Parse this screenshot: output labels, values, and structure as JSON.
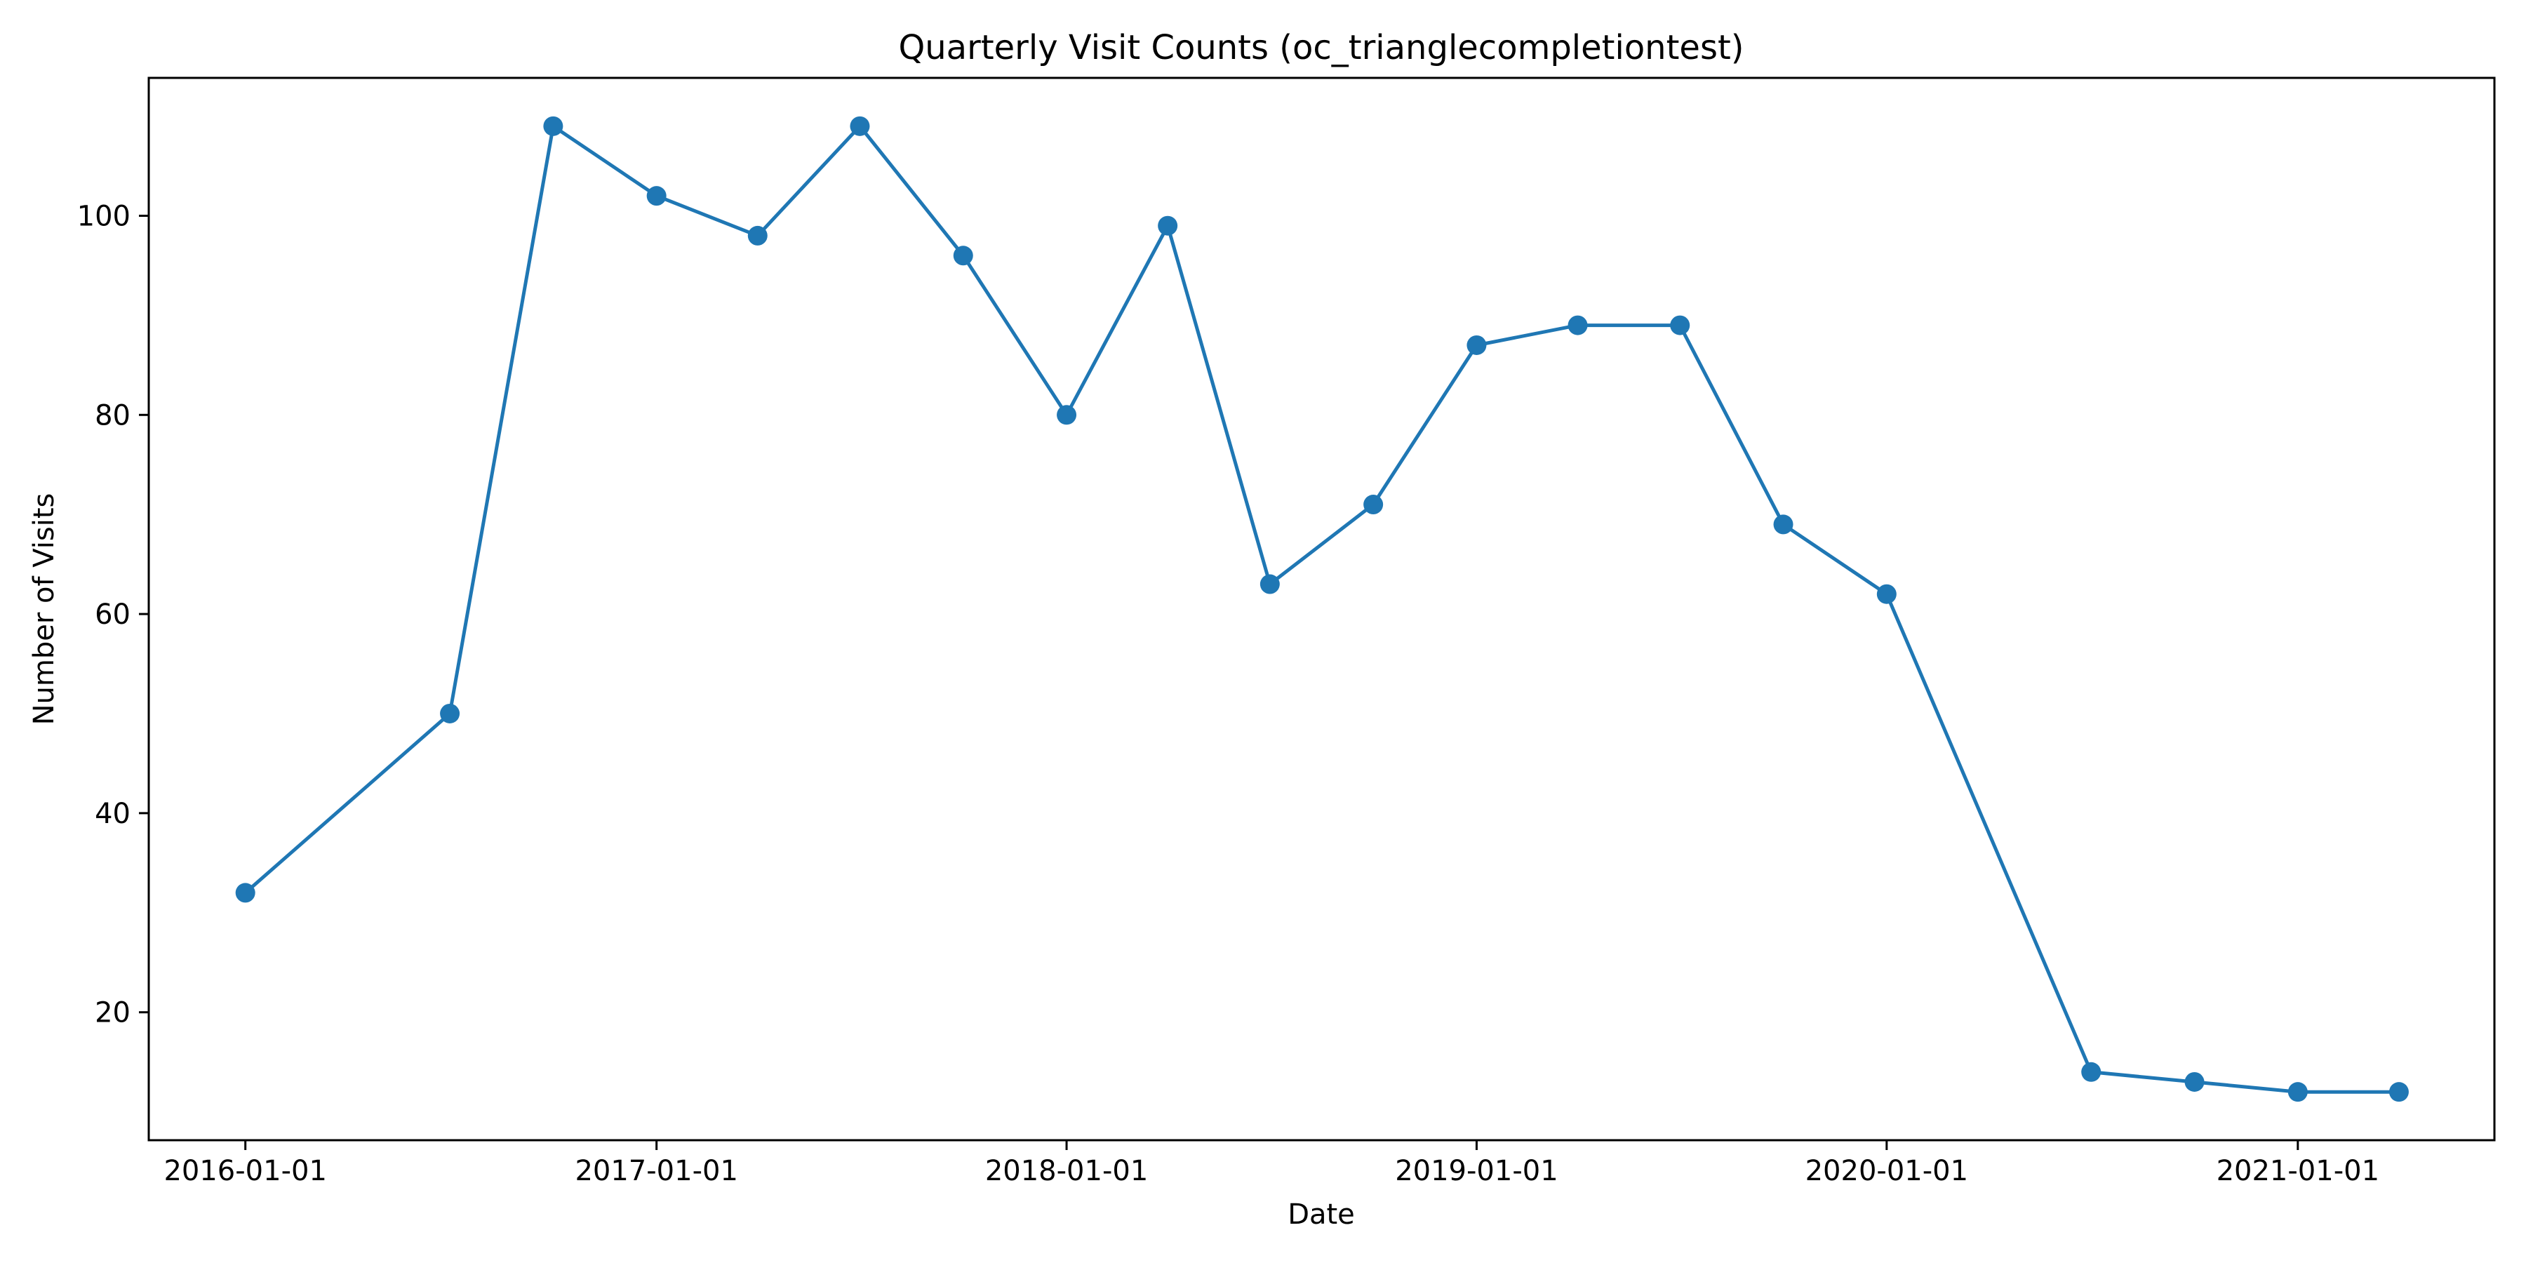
{
  "chart_data": {
    "type": "line",
    "title": "Quarterly Visit Counts (oc_trianglecompletiontest)",
    "xlabel": "Date",
    "ylabel": "Number of Visits",
    "x": [
      "2016-01-01",
      "2016-07-01",
      "2016-10-01",
      "2017-01-01",
      "2017-04-01",
      "2017-07-01",
      "2017-10-01",
      "2018-01-01",
      "2018-04-01",
      "2018-07-01",
      "2018-10-01",
      "2019-01-01",
      "2019-04-01",
      "2019-07-01",
      "2019-10-01",
      "2020-01-01",
      "2020-07-01",
      "2020-10-01",
      "2021-01-01",
      "2021-04-01"
    ],
    "series": [
      {
        "name": "",
        "color": "#1f77b4",
        "values": [
          32,
          50,
          109,
          102,
          98,
          109,
          96,
          80,
          99,
          63,
          71,
          87,
          89,
          89,
          69,
          62,
          14,
          13,
          12,
          12
        ]
      }
    ],
    "xticks": [
      "2016-01-01",
      "2017-01-01",
      "2018-01-01",
      "2019-01-01",
      "2020-01-01",
      "2021-01-01"
    ],
    "yticks": [
      20,
      40,
      60,
      80,
      100
    ],
    "xlim": [
      "2015-10-07",
      "2021-06-25"
    ],
    "ylim": [
      7.15,
      113.85
    ],
    "grid": false,
    "legend": "none"
  }
}
